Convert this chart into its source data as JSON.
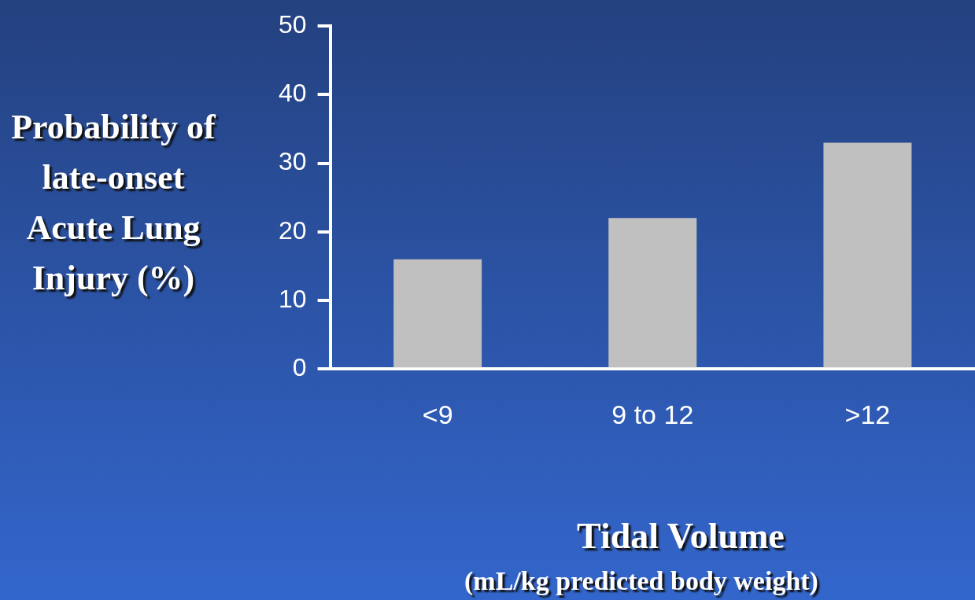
{
  "chart_data": {
    "type": "bar",
    "ylabel": "Probability of late-onset Acute Lung Injury (%)",
    "xlabel": "Tidal Volume",
    "annotations": [
      "(mL/kg predicted body weight)"
    ],
    "categories": [
      "<9",
      "9 to 12",
      ">12"
    ],
    "values": [
      16,
      22,
      33
    ],
    "color": "#c0c0c0",
    "ylim": [
      0,
      50
    ],
    "yticks": [
      0,
      10,
      20,
      30,
      40,
      50
    ],
    "grid": false,
    "legend": false
  }
}
